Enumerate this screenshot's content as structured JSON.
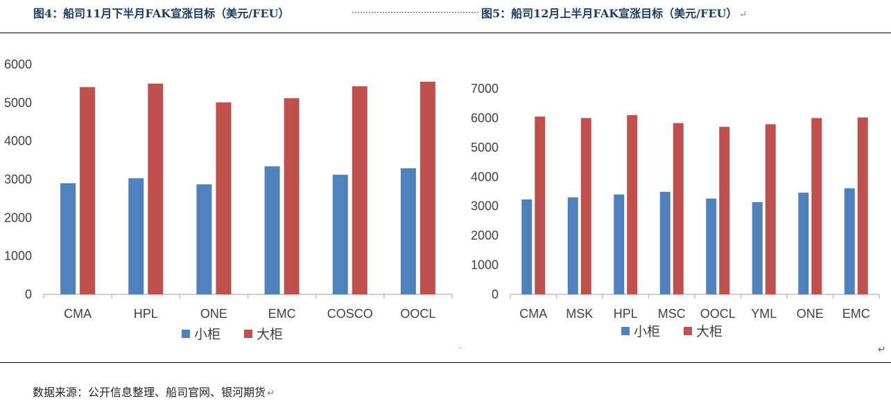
{
  "header": {
    "left_title": "图4：船司11月下半月FAK宣涨目标（美元/FEU）",
    "right_title": "图5：船司12月上半月FAK宣涨目标（美元/FEU）",
    "return_mark": "↵"
  },
  "source": {
    "text": "数据来源：公开信息整理、船司官网、银河期货",
    "return_mark": "↵"
  },
  "chart_data": [
    {
      "type": "bar",
      "title": "图4：船司11月下半月FAK宣涨目标（美元/FEU）",
      "categories": [
        "CMA",
        "HPL",
        "ONE",
        "EMC",
        "COSCO",
        "OOCL"
      ],
      "series": [
        {
          "name": "小柜",
          "color": "#4f81bd",
          "values": [
            2900,
            3030,
            2870,
            3340,
            3120,
            3290
          ]
        },
        {
          "name": "大柜",
          "color": "#c0504d",
          "values": [
            5410,
            5500,
            5010,
            5120,
            5430,
            5550
          ]
        }
      ],
      "ylim": [
        0,
        6000
      ],
      "yticks": [
        0,
        1000,
        2000,
        3000,
        4000,
        5000,
        6000
      ],
      "grid": false,
      "legend": "bottom"
    },
    {
      "type": "bar",
      "title": "图5：船司12月上半月FAK宣涨目标（美元/FEU）",
      "categories": [
        "CMA",
        "MSK",
        "HPL",
        "MSC",
        "OOCL",
        "YML",
        "ONE",
        "EMC"
      ],
      "series": [
        {
          "name": "小柜",
          "color": "#4f81bd",
          "values": [
            3230,
            3300,
            3400,
            3490,
            3260,
            3140,
            3460,
            3610
          ]
        },
        {
          "name": "大柜",
          "color": "#c0504d",
          "values": [
            6050,
            6000,
            6100,
            5830,
            5700,
            5790,
            6000,
            6020
          ]
        }
      ],
      "ylim": [
        0,
        7000
      ],
      "yticks": [
        0,
        1000,
        2000,
        3000,
        4000,
        5000,
        6000,
        7000
      ],
      "grid": false,
      "legend": "bottom"
    }
  ]
}
